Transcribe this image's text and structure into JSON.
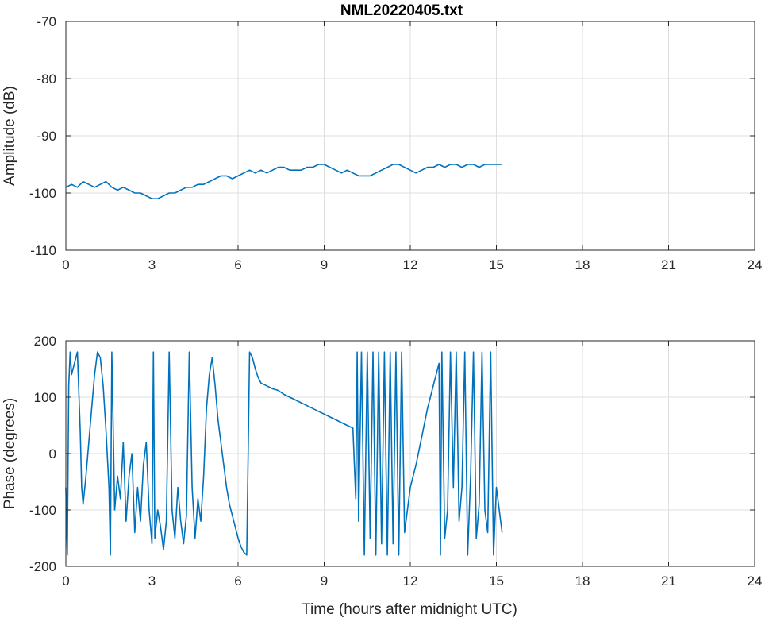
{
  "colors": {
    "series": "#0072BD",
    "axis": "#262626",
    "grid": "#DFDFDF",
    "background": "#FFFFFF"
  },
  "chart_data": [
    {
      "type": "line",
      "title": "NML20220405.txt",
      "xlabel": "",
      "ylabel": "Amplitude (dB)",
      "xlim": [
        0,
        24
      ],
      "ylim": [
        -110,
        -70
      ],
      "xticks": [
        0,
        3,
        6,
        9,
        12,
        15,
        18,
        21,
        24
      ],
      "yticks": [
        -110,
        -100,
        -90,
        -80,
        -70
      ],
      "xtick_labels": [
        "0",
        "3",
        "6",
        "9",
        "12",
        "15",
        "18",
        "21",
        "24"
      ],
      "ytick_labels": [
        "-110",
        "-100",
        "-90",
        "-80",
        "-70"
      ],
      "grid": true,
      "series": [
        {
          "x": [
            0.0,
            0.2,
            0.4,
            0.6,
            0.8,
            1.0,
            1.2,
            1.4,
            1.6,
            1.8,
            2.0,
            2.2,
            2.4,
            2.6,
            2.8,
            3.0,
            3.2,
            3.4,
            3.6,
            3.8,
            4.0,
            4.2,
            4.4,
            4.6,
            4.8,
            5.0,
            5.2,
            5.4,
            5.6,
            5.8,
            6.0,
            6.2,
            6.4,
            6.6,
            6.8,
            7.0,
            7.2,
            7.4,
            7.6,
            7.8,
            8.0,
            8.2,
            8.4,
            8.6,
            8.8,
            9.0,
            9.2,
            9.4,
            9.6,
            9.8,
            10.0,
            10.2,
            10.4,
            10.6,
            10.8,
            11.0,
            11.2,
            11.4,
            11.6,
            11.8,
            12.0,
            12.2,
            12.4,
            12.6,
            12.8,
            13.0,
            13.2,
            13.4,
            13.6,
            13.8,
            14.0,
            14.2,
            14.4,
            14.6,
            14.8,
            15.0,
            15.2
          ],
          "y": [
            -99,
            -98.5,
            -99,
            -98,
            -98.5,
            -99,
            -98.5,
            -98,
            -99,
            -99.5,
            -99,
            -99.5,
            -100,
            -100,
            -100.5,
            -101,
            -101,
            -100.5,
            -100,
            -100,
            -99.5,
            -99,
            -99,
            -98.5,
            -98.5,
            -98,
            -97.5,
            -97,
            -97,
            -97.5,
            -97,
            -96.5,
            -96,
            -96.5,
            -96,
            -96.5,
            -96,
            -95.5,
            -95.5,
            -96,
            -96,
            -96,
            -95.5,
            -95.5,
            -95,
            -95,
            -95.5,
            -96,
            -96.5,
            -96,
            -96.5,
            -97,
            -97,
            -97,
            -96.5,
            -96,
            -95.5,
            -95,
            -95,
            -95.5,
            -96,
            -96.5,
            -96,
            -95.5,
            -95.5,
            -95,
            -95.5,
            -95,
            -95,
            -95.5,
            -95,
            -95,
            -95.5,
            -95,
            -95,
            -95,
            -95
          ]
        }
      ]
    },
    {
      "type": "line",
      "title": "",
      "xlabel": "Time (hours after midnight UTC)",
      "ylabel": "Phase (degrees)",
      "xlim": [
        0,
        24
      ],
      "ylim": [
        -200,
        200
      ],
      "xticks": [
        0,
        3,
        6,
        9,
        12,
        15,
        18,
        21,
        24
      ],
      "yticks": [
        -200,
        -100,
        0,
        100,
        200
      ],
      "xtick_labels": [
        "0",
        "3",
        "6",
        "9",
        "12",
        "15",
        "18",
        "21",
        "24"
      ],
      "ytick_labels": [
        "-200",
        "-100",
        "0",
        "100",
        "200"
      ],
      "grid": true,
      "series": [
        {
          "x": [
            0.0,
            0.05,
            0.1,
            0.15,
            0.2,
            0.3,
            0.4,
            0.5,
            0.55,
            0.6,
            0.7,
            0.8,
            0.9,
            1.0,
            1.1,
            1.2,
            1.3,
            1.4,
            1.5,
            1.55,
            1.6,
            1.7,
            1.8,
            1.9,
            2.0,
            2.1,
            2.2,
            2.3,
            2.4,
            2.5,
            2.6,
            2.7,
            2.8,
            2.9,
            3.0,
            3.05,
            3.1,
            3.2,
            3.3,
            3.4,
            3.5,
            3.6,
            3.7,
            3.8,
            3.9,
            4.0,
            4.1,
            4.2,
            4.3,
            4.4,
            4.5,
            4.6,
            4.7,
            4.8,
            4.9,
            5.0,
            5.1,
            5.2,
            5.3,
            5.4,
            5.5,
            5.6,
            5.7,
            5.8,
            5.9,
            6.0,
            6.1,
            6.2,
            6.3,
            6.4,
            6.5,
            6.6,
            6.7,
            6.8,
            7.0,
            7.2,
            7.4,
            7.6,
            7.8,
            8.0,
            8.2,
            8.4,
            8.6,
            8.8,
            9.0,
            9.2,
            9.4,
            9.6,
            9.8,
            10.0,
            10.1,
            10.15,
            10.2,
            10.3,
            10.4,
            10.5,
            10.6,
            10.7,
            10.8,
            10.9,
            11.0,
            11.1,
            11.2,
            11.3,
            11.4,
            11.5,
            11.6,
            11.7,
            11.8,
            11.9,
            12.0,
            12.2,
            12.4,
            12.6,
            12.8,
            13.0,
            13.05,
            13.1,
            13.2,
            13.3,
            13.4,
            13.5,
            13.6,
            13.7,
            13.8,
            13.9,
            14.0,
            14.1,
            14.2,
            14.3,
            14.4,
            14.5,
            14.6,
            14.7,
            14.8,
            14.9,
            15.0,
            15.1,
            15.2
          ],
          "y": [
            -60,
            -180,
            120,
            180,
            140,
            160,
            180,
            40,
            -60,
            -90,
            -40,
            20,
            80,
            140,
            180,
            170,
            120,
            40,
            -60,
            -180,
            180,
            -100,
            -40,
            -80,
            20,
            -120,
            -40,
            0,
            -140,
            -60,
            -120,
            -20,
            20,
            -100,
            -160,
            180,
            -150,
            -100,
            -130,
            -170,
            -120,
            180,
            -100,
            -150,
            -60,
            -120,
            -160,
            -110,
            180,
            -60,
            -150,
            -80,
            -120,
            -40,
            80,
            140,
            170,
            120,
            60,
            20,
            -20,
            -60,
            -90,
            -110,
            -130,
            -150,
            -165,
            -175,
            -180,
            180,
            170,
            150,
            135,
            125,
            120,
            115,
            112,
            105,
            100,
            95,
            90,
            85,
            80,
            75,
            70,
            65,
            60,
            55,
            50,
            45,
            -80,
            180,
            -120,
            180,
            -180,
            180,
            -150,
            180,
            -180,
            180,
            -160,
            180,
            -180,
            180,
            -160,
            180,
            -180,
            180,
            -140,
            -100,
            -60,
            -20,
            30,
            80,
            120,
            160,
            -180,
            180,
            -150,
            -100,
            180,
            -60,
            180,
            -120,
            -60,
            180,
            -180,
            -40,
            180,
            -150,
            -90,
            180,
            -100,
            -140,
            180,
            -180,
            -60,
            -100,
            -140
          ]
        }
      ]
    }
  ]
}
